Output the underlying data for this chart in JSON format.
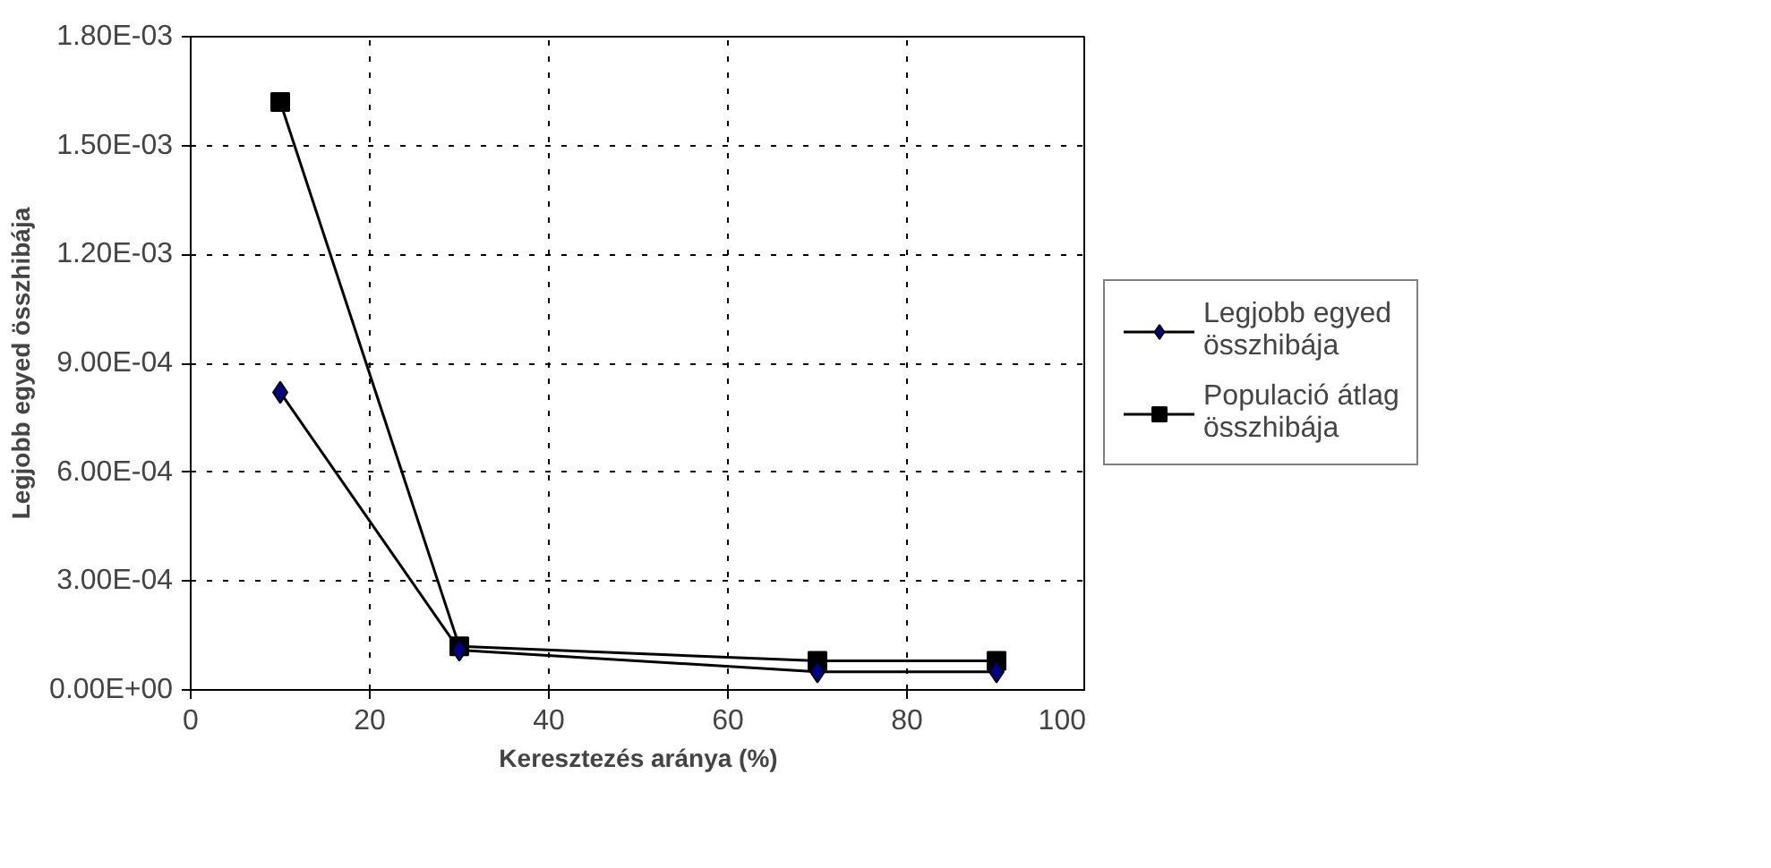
{
  "chart_data": {
    "type": "line",
    "xlabel": "Keresztezés aránya (%)",
    "ylabel": "Legjobb egyed összhibája",
    "x": [
      10,
      30,
      70,
      90
    ],
    "series": [
      {
        "name": "Legjobb egyed összhibája",
        "color": "#000080",
        "marker": "diamond",
        "values": [
          0.00082,
          0.00011,
          5e-05,
          5e-05
        ]
      },
      {
        "name": "Populació átlag összhibája",
        "color": "#000000",
        "marker": "square",
        "values": [
          0.00162,
          0.00012,
          8e-05,
          8e-05
        ]
      }
    ],
    "xlim": [
      0,
      100
    ],
    "xticks": [
      0,
      20,
      40,
      60,
      80,
      100
    ],
    "ylim": [
      0,
      0.0018
    ],
    "yticks": [
      {
        "value": 0,
        "label": "0.00E+00"
      },
      {
        "value": 0.0003,
        "label": "3.00E-04"
      },
      {
        "value": 0.0006,
        "label": "6.00E-04"
      },
      {
        "value": 0.0009,
        "label": "9.00E-04"
      },
      {
        "value": 0.0012,
        "label": "1.20E-03"
      },
      {
        "value": 0.0015,
        "label": "1.50E-03"
      },
      {
        "value": 0.0018,
        "label": "1.80E-03"
      }
    ],
    "grid": true,
    "legend": "right",
    "line_style": "solid"
  }
}
